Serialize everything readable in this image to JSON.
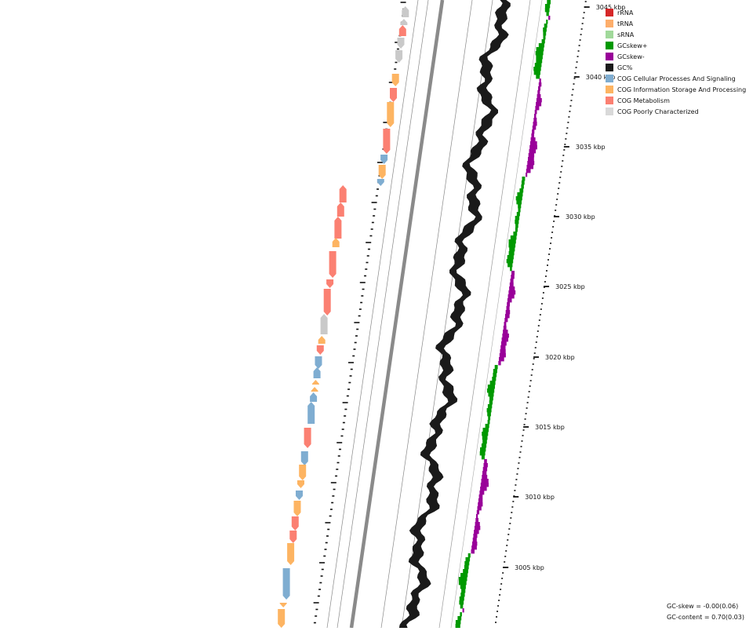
{
  "figure": {
    "type": "circular genome map (zoomed arc)",
    "scale_labels": [
      "3045 kbp",
      "3040 kbp",
      "3035 kbp",
      "3030 kbp",
      "3025 kbp",
      "3020 kbp",
      "3015 kbp",
      "3010 kbp",
      "3005 kbp"
    ]
  },
  "legend": {
    "items": [
      {
        "label": "rRNA",
        "color": "#d62728"
      },
      {
        "label": "tRNA",
        "color": "#fdae6b"
      },
      {
        "label": "sRNA",
        "color": "#a1d99b"
      },
      {
        "label": "GCskew+",
        "color": "#009900"
      },
      {
        "label": "GCskew-",
        "color": "#990099"
      },
      {
        "label": "GC%",
        "color": "#1a1a1a"
      },
      {
        "label": "COG Cellular Processes And Signaling",
        "color": "#7fadd1"
      },
      {
        "label": "COG Information Storage And Processing",
        "color": "#fdb462"
      },
      {
        "label": "COG Metabolism",
        "color": "#fb8072"
      },
      {
        "label": "COG Poorly Characterized",
        "color": "#d9d9d9"
      }
    ]
  },
  "stats": {
    "gc_skew": "GC-skew = -0.00(0.06)",
    "gc_content": "GC-content = 0.70(0.03)"
  },
  "features": {
    "reverse_track": [
      "grey",
      "grey",
      "salmon",
      "grey",
      "grey",
      "orange",
      "salmon",
      "orange",
      "salmon",
      "blue",
      "orange",
      "blue"
    ],
    "forward_track": [
      "salmon",
      "salmon",
      "salmon",
      "orange",
      "salmon",
      "salmon",
      "salmon",
      "grey",
      "orange",
      "salmon",
      "blue",
      "blue",
      "orange",
      "orange",
      "blue",
      "blue",
      "salmon",
      "blue",
      "orange",
      "orange",
      "blue",
      "orange",
      "salmon",
      "salmon",
      "orange",
      "blue",
      "orange",
      "orange"
    ]
  }
}
